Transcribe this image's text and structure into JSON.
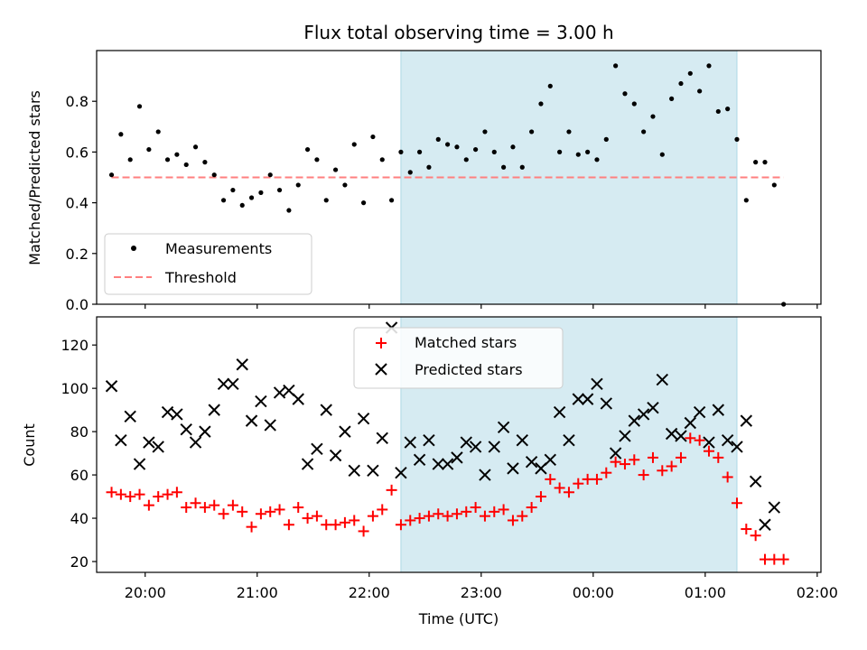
{
  "title": "Flux total observing time = 3.00 h",
  "colors": {
    "shade": "#add8e6",
    "measurement": "#000000",
    "threshold": "#ff7f7f",
    "matched": "#ff0000",
    "predicted": "#000000"
  },
  "chart_data": [
    {
      "type": "scatter",
      "panel": "top",
      "xlabel": "",
      "ylabel": "Matched/Predicted stars",
      "x_tick_labels": [],
      "xlim": [
        "19:34",
        "02:02"
      ],
      "ylim": [
        0,
        1.0
      ],
      "yticks": [
        "0.0",
        "0.2",
        "0.4",
        "0.6",
        "0.8"
      ],
      "shaded_interval": [
        "22:17",
        "01:17"
      ],
      "threshold": {
        "value": 0.5,
        "x_range": [
          "19:42",
          "01:42"
        ],
        "style": "dashed"
      },
      "legend": {
        "position": "lower-left",
        "entries": [
          "Measurements",
          "Threshold"
        ]
      },
      "series": [
        {
          "name": "Measurements",
          "marker": "dot",
          "points": [
            [
              "19:42",
              0.51
            ],
            [
              "19:47",
              0.67
            ],
            [
              "19:52",
              0.57
            ],
            [
              "19:57",
              0.78
            ],
            [
              "20:02",
              0.61
            ],
            [
              "20:07",
              0.68
            ],
            [
              "20:12",
              0.57
            ],
            [
              "20:17",
              0.59
            ],
            [
              "20:22",
              0.55
            ],
            [
              "20:27",
              0.62
            ],
            [
              "20:32",
              0.56
            ],
            [
              "20:37",
              0.51
            ],
            [
              "20:42",
              0.41
            ],
            [
              "20:47",
              0.45
            ],
            [
              "20:52",
              0.39
            ],
            [
              "20:57",
              0.42
            ],
            [
              "21:02",
              0.44
            ],
            [
              "21:07",
              0.51
            ],
            [
              "21:12",
              0.45
            ],
            [
              "21:17",
              0.37
            ],
            [
              "21:22",
              0.47
            ],
            [
              "21:27",
              0.61
            ],
            [
              "21:32",
              0.57
            ],
            [
              "21:37",
              0.41
            ],
            [
              "21:42",
              0.53
            ],
            [
              "21:47",
              0.47
            ],
            [
              "21:52",
              0.63
            ],
            [
              "21:57",
              0.4
            ],
            [
              "22:02",
              0.66
            ],
            [
              "22:07",
              0.57
            ],
            [
              "22:12",
              0.41
            ],
            [
              "22:17",
              0.6
            ],
            [
              "22:22",
              0.52
            ],
            [
              "22:27",
              0.6
            ],
            [
              "22:32",
              0.54
            ],
            [
              "22:37",
              0.65
            ],
            [
              "22:42",
              0.63
            ],
            [
              "22:47",
              0.62
            ],
            [
              "22:52",
              0.57
            ],
            [
              "22:57",
              0.61
            ],
            [
              "23:02",
              0.68
            ],
            [
              "23:07",
              0.6
            ],
            [
              "23:12",
              0.54
            ],
            [
              "23:17",
              0.62
            ],
            [
              "23:22",
              0.54
            ],
            [
              "23:27",
              0.68
            ],
            [
              "23:32",
              0.79
            ],
            [
              "23:37",
              0.86
            ],
            [
              "23:42",
              0.6
            ],
            [
              "23:47",
              0.68
            ],
            [
              "23:52",
              0.59
            ],
            [
              "23:57",
              0.6
            ],
            [
              "00:02",
              0.57
            ],
            [
              "00:07",
              0.65
            ],
            [
              "00:12",
              0.94
            ],
            [
              "00:17",
              0.83
            ],
            [
              "00:22",
              0.79
            ],
            [
              "00:27",
              0.68
            ],
            [
              "00:32",
              0.74
            ],
            [
              "00:37",
              0.59
            ],
            [
              "00:42",
              0.81
            ],
            [
              "00:47",
              0.87
            ],
            [
              "00:52",
              0.91
            ],
            [
              "00:57",
              0.84
            ],
            [
              "01:02",
              0.94
            ],
            [
              "01:07",
              0.76
            ],
            [
              "01:12",
              0.77
            ],
            [
              "01:17",
              0.65
            ],
            [
              "01:22",
              0.41
            ],
            [
              "01:27",
              0.56
            ],
            [
              "01:32",
              0.56
            ],
            [
              "01:37",
              0.47
            ],
            [
              "01:42",
              0.0
            ]
          ]
        }
      ]
    },
    {
      "type": "scatter",
      "panel": "bottom",
      "xlabel": "Time (UTC)",
      "ylabel": "Count",
      "xlim": [
        "19:34",
        "02:02"
      ],
      "x_tick_labels": [
        "20:00",
        "21:00",
        "22:00",
        "23:00",
        "00:00",
        "01:00",
        "02:00"
      ],
      "ylim": [
        15,
        133
      ],
      "yticks": [
        "20",
        "40",
        "60",
        "80",
        "100",
        "120"
      ],
      "shaded_interval": [
        "22:17",
        "01:17"
      ],
      "legend": {
        "position": "upper-center",
        "entries": [
          "Matched stars",
          "Predicted stars"
        ]
      },
      "series": [
        {
          "name": "Matched stars",
          "marker": "plus",
          "points": [
            [
              "19:42",
              52
            ],
            [
              "19:47",
              51
            ],
            [
              "19:52",
              50
            ],
            [
              "19:57",
              51
            ],
            [
              "20:02",
              46
            ],
            [
              "20:07",
              50
            ],
            [
              "20:12",
              51
            ],
            [
              "20:17",
              52
            ],
            [
              "20:22",
              45
            ],
            [
              "20:27",
              47
            ],
            [
              "20:32",
              45
            ],
            [
              "20:37",
              46
            ],
            [
              "20:42",
              42
            ],
            [
              "20:47",
              46
            ],
            [
              "20:52",
              43
            ],
            [
              "20:57",
              36
            ],
            [
              "21:02",
              42
            ],
            [
              "21:07",
              43
            ],
            [
              "21:12",
              44
            ],
            [
              "21:17",
              37
            ],
            [
              "21:22",
              45
            ],
            [
              "21:27",
              40
            ],
            [
              "21:32",
              41
            ],
            [
              "21:37",
              37
            ],
            [
              "21:42",
              37
            ],
            [
              "21:47",
              38
            ],
            [
              "21:52",
              39
            ],
            [
              "21:57",
              34
            ],
            [
              "22:02",
              41
            ],
            [
              "22:07",
              44
            ],
            [
              "22:12",
              53
            ],
            [
              "22:17",
              37
            ],
            [
              "22:22",
              39
            ],
            [
              "22:27",
              40
            ],
            [
              "22:32",
              41
            ],
            [
              "22:37",
              42
            ],
            [
              "22:42",
              41
            ],
            [
              "22:47",
              42
            ],
            [
              "22:52",
              43
            ],
            [
              "22:57",
              45
            ],
            [
              "23:02",
              41
            ],
            [
              "23:07",
              43
            ],
            [
              "23:12",
              44
            ],
            [
              "23:17",
              39
            ],
            [
              "23:22",
              41
            ],
            [
              "23:27",
              45
            ],
            [
              "23:32",
              50
            ],
            [
              "23:37",
              58
            ],
            [
              "23:42",
              54
            ],
            [
              "23:47",
              52
            ],
            [
              "23:52",
              56
            ],
            [
              "23:57",
              58
            ],
            [
              "00:02",
              58
            ],
            [
              "00:07",
              61
            ],
            [
              "00:12",
              66
            ],
            [
              "00:17",
              65
            ],
            [
              "00:22",
              67
            ],
            [
              "00:27",
              60
            ],
            [
              "00:32",
              68
            ],
            [
              "00:37",
              62
            ],
            [
              "00:42",
              64
            ],
            [
              "00:47",
              68
            ],
            [
              "00:52",
              77
            ],
            [
              "00:57",
              76
            ],
            [
              "01:02",
              71
            ],
            [
              "01:07",
              68
            ],
            [
              "01:12",
              59
            ],
            [
              "01:17",
              47
            ],
            [
              "01:22",
              35
            ],
            [
              "01:27",
              32
            ],
            [
              "01:32",
              21
            ],
            [
              "01:37",
              21
            ],
            [
              "01:42",
              21
            ]
          ]
        },
        {
          "name": "Predicted stars",
          "marker": "x",
          "points": [
            [
              "19:42",
              101
            ],
            [
              "19:47",
              76
            ],
            [
              "19:52",
              87
            ],
            [
              "19:57",
              65
            ],
            [
              "20:02",
              75
            ],
            [
              "20:07",
              73
            ],
            [
              "20:12",
              89
            ],
            [
              "20:17",
              88
            ],
            [
              "20:22",
              81
            ],
            [
              "20:27",
              75
            ],
            [
              "20:32",
              80
            ],
            [
              "20:37",
              90
            ],
            [
              "20:42",
              102
            ],
            [
              "20:47",
              102
            ],
            [
              "20:52",
              111
            ],
            [
              "20:57",
              85
            ],
            [
              "21:02",
              94
            ],
            [
              "21:07",
              83
            ],
            [
              "21:12",
              98
            ],
            [
              "21:17",
              99
            ],
            [
              "21:22",
              95
            ],
            [
              "21:27",
              65
            ],
            [
              "21:32",
              72
            ],
            [
              "21:37",
              90
            ],
            [
              "21:42",
              69
            ],
            [
              "21:47",
              80
            ],
            [
              "21:52",
              62
            ],
            [
              "21:57",
              86
            ],
            [
              "22:02",
              62
            ],
            [
              "22:07",
              77
            ],
            [
              "22:12",
              128
            ],
            [
              "22:17",
              61
            ],
            [
              "22:22",
              75
            ],
            [
              "22:27",
              67
            ],
            [
              "22:32",
              76
            ],
            [
              "22:37",
              65
            ],
            [
              "22:42",
              65
            ],
            [
              "22:47",
              68
            ],
            [
              "22:52",
              75
            ],
            [
              "22:57",
              73
            ],
            [
              "23:02",
              60
            ],
            [
              "23:07",
              73
            ],
            [
              "23:12",
              82
            ],
            [
              "23:17",
              63
            ],
            [
              "23:22",
              76
            ],
            [
              "23:27",
              66
            ],
            [
              "23:32",
              63
            ],
            [
              "23:37",
              67
            ],
            [
              "23:42",
              89
            ],
            [
              "23:47",
              76
            ],
            [
              "23:52",
              95
            ],
            [
              "23:57",
              95
            ],
            [
              "00:02",
              102
            ],
            [
              "00:07",
              93
            ],
            [
              "00:12",
              70
            ],
            [
              "00:17",
              78
            ],
            [
              "00:22",
              85
            ],
            [
              "00:27",
              88
            ],
            [
              "00:32",
              91
            ],
            [
              "00:37",
              104
            ],
            [
              "00:42",
              79
            ],
            [
              "00:47",
              78
            ],
            [
              "00:52",
              84
            ],
            [
              "00:57",
              89
            ],
            [
              "01:02",
              75
            ],
            [
              "01:07",
              90
            ],
            [
              "01:12",
              76
            ],
            [
              "01:17",
              73
            ],
            [
              "01:22",
              85
            ],
            [
              "01:27",
              57
            ],
            [
              "01:32",
              37
            ],
            [
              "01:37",
              45
            ]
          ]
        }
      ]
    }
  ]
}
